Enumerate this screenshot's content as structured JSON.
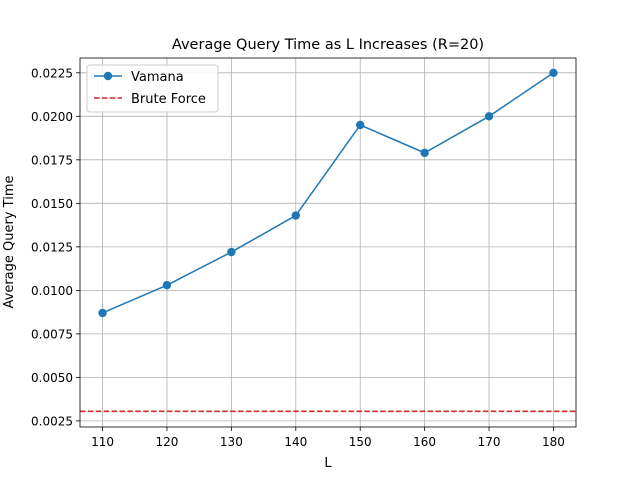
{
  "chart_data": {
    "type": "line",
    "title": "Average Query Time as L Increases (R=20)",
    "xlabel": "L",
    "ylabel": "Average Query Time",
    "xlim": [
      106.5,
      183.5
    ],
    "ylim": [
      0.00215,
      0.02335
    ],
    "xticks": [
      110,
      120,
      130,
      140,
      150,
      160,
      170,
      180
    ],
    "yticks": [
      "0.0025",
      "0.0050",
      "0.0075",
      "0.0100",
      "0.0125",
      "0.0150",
      "0.0175",
      "0.0200",
      "0.0225"
    ],
    "grid": true,
    "legend_position": "top-left",
    "series": [
      {
        "name": "Vamana",
        "style": "solid-line-circle-markers",
        "color": "#1f77b4",
        "x": [
          110,
          120,
          130,
          140,
          150,
          160,
          170,
          180
        ],
        "y": [
          0.0087,
          0.0103,
          0.0122,
          0.0143,
          0.0195,
          0.0179,
          0.02,
          0.0225
        ]
      },
      {
        "name": "Brute Force",
        "style": "dashed-horizontal-line",
        "color": "#d62728",
        "y": 0.00305
      }
    ]
  }
}
